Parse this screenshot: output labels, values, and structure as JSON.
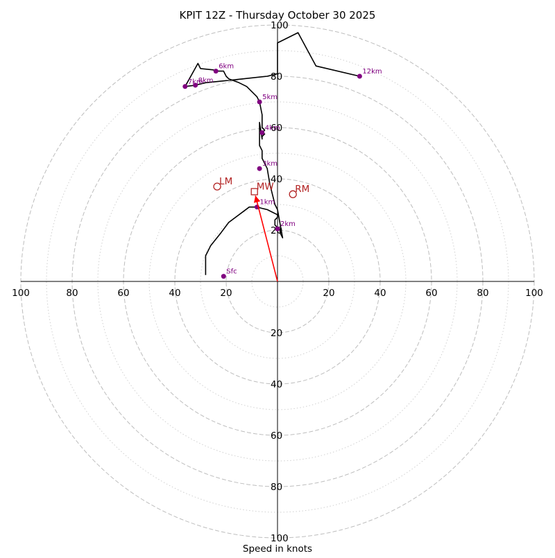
{
  "chart_data": {
    "type": "hodograph",
    "title": "KPIT 12Z - Thursday October 30 2025",
    "xlabel": "Speed in knots",
    "range": [
      -100,
      100
    ],
    "ring_labels": [
      "100",
      "80",
      "60",
      "40",
      "20",
      "20",
      "40",
      "60",
      "80",
      "100"
    ],
    "x_tick_labels": [
      {
        "label": "100",
        "value": -100
      },
      {
        "label": "80",
        "value": -80
      },
      {
        "label": "60",
        "value": -60
      },
      {
        "label": "40",
        "value": -40
      },
      {
        "label": "20",
        "value": -20
      },
      {
        "label": "20",
        "value": 20
      },
      {
        "label": "40",
        "value": 40
      },
      {
        "label": "60",
        "value": 60
      },
      {
        "label": "80",
        "value": 80
      },
      {
        "label": "100",
        "value": 100
      }
    ],
    "y_tick_labels": [
      {
        "label": "100",
        "value": 100
      },
      {
        "label": "80",
        "value": 80
      },
      {
        "label": "60",
        "value": 60
      },
      {
        "label": "40",
        "value": 40
      },
      {
        "label": "20",
        "value": 20
      },
      {
        "label": "20",
        "value": -20
      },
      {
        "label": "40",
        "value": -40
      },
      {
        "label": "60",
        "value": -60
      },
      {
        "label": "80",
        "value": -80
      },
      {
        "label": "100",
        "value": -100
      }
    ],
    "rings_dashed": [
      20,
      40,
      60,
      80,
      100
    ],
    "rings_dotted": [
      10,
      30,
      50,
      70,
      90
    ],
    "hodograph_line": {
      "u": [
        -28,
        -28,
        -27,
        -26,
        -22,
        -19,
        -19,
        -11,
        -10,
        -10,
        -8,
        -6,
        -4,
        -2,
        0,
        0,
        -1,
        -1,
        0,
        1,
        1,
        2,
        0,
        -1,
        -2,
        -3,
        -4,
        -5,
        -6,
        -6,
        -7,
        -7,
        -7,
        -6,
        -6,
        -5,
        -6,
        -5,
        -6,
        -6,
        -7,
        -8,
        -10,
        -12,
        -15,
        -19,
        -20,
        -21,
        -22,
        -24,
        -25,
        -25,
        -30,
        -31,
        -36,
        -32,
        -28,
        -18,
        -4,
        0,
        0,
        8,
        15,
        32
      ],
      "v": [
        2.5,
        10,
        12,
        14,
        19,
        23,
        23,
        29,
        29,
        29,
        29,
        28.5,
        28,
        27,
        26,
        25,
        24,
        22,
        21,
        20.5,
        19,
        17,
        28,
        30,
        34,
        38,
        44,
        46,
        48,
        51,
        53,
        56,
        62,
        55.5,
        56.5,
        57.5,
        58,
        59,
        60,
        65,
        70,
        72,
        74,
        76,
        77.5,
        79,
        80,
        82,
        82,
        82,
        82.5,
        82.5,
        83,
        85,
        76,
        76.5,
        77.5,
        78.5,
        80,
        81,
        93,
        97,
        84,
        80
      ]
    },
    "height_points": [
      {
        "label": "Sfc",
        "u": -21,
        "v": 2
      },
      {
        "label": "1km",
        "u": -8,
        "v": 29
      },
      {
        "label": "2km",
        "u": 0,
        "v": 20.5
      },
      {
        "label": "3km",
        "u": -7,
        "v": 44
      },
      {
        "label": "4km",
        "u": -6,
        "v": 58
      },
      {
        "label": "5km",
        "u": -7,
        "v": 70
      },
      {
        "label": "6km",
        "u": -24,
        "v": 82
      },
      {
        "label": "7km",
        "u": -36,
        "v": 76
      },
      {
        "label": "8km",
        "u": -32,
        "v": 76.5
      },
      {
        "label": "12km",
        "u": 32,
        "v": 80
      }
    ],
    "storm_motion": [
      {
        "label": "LM",
        "marker": "circle",
        "u": -23.5,
        "v": 37
      },
      {
        "label": "MW",
        "marker": "square",
        "u": -9,
        "v": 35
      },
      {
        "label": "RM",
        "marker": "circle",
        "u": 6,
        "v": 34
      }
    ],
    "mean_wind_vector": {
      "u": -9,
      "v": 35
    },
    "colors": {
      "line": "#000000",
      "points": "#800080",
      "storm": "#b22222",
      "arrow": "#ff0000",
      "rings": "#bdbdbd"
    }
  }
}
